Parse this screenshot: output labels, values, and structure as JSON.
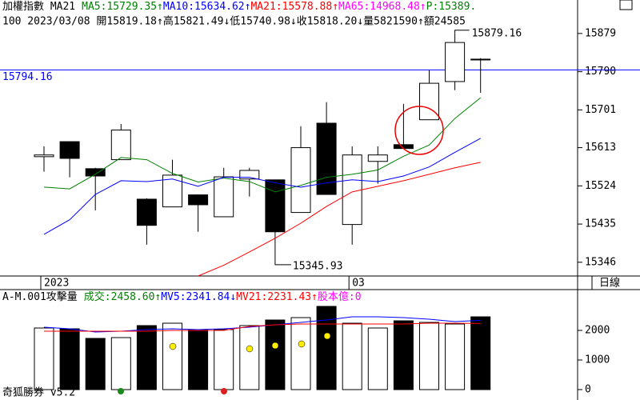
{
  "chart_data": [
    {
      "type": "candlestick",
      "header": [
        {
          "text": "加權指數 MA21",
          "color": "#000000"
        },
        {
          "text": "MA5:15729.35↑",
          "color": "#008000"
        },
        {
          "text": "MA10:15634.62↑",
          "color": "#0000ff"
        },
        {
          "text": "MA21:15578.88↑",
          "color": "#ff0000"
        },
        {
          "text": "MA65:14968.48↑",
          "color": "#ff00ff"
        },
        {
          "text": "P:15389.",
          "color": "#008000"
        }
      ],
      "subheader": "100 2023/03/08 開15819.18↑高15821.49↓低15740.98↓收15818.20↓量5821590↑額24585",
      "period": "日線",
      "categories": [
        "2023",
        null,
        null,
        null,
        null,
        null,
        null,
        null,
        null,
        null,
        null,
        null,
        "03",
        null,
        null,
        null,
        null,
        null
      ],
      "open": [
        15592,
        15627,
        15564,
        15585,
        15493,
        15475,
        15503,
        15452,
        15540,
        15538,
        15462,
        15670,
        15434,
        15581,
        15620,
        15678,
        15767,
        15819.18
      ],
      "high": [
        15616,
        15627,
        15566,
        15668,
        15495,
        15585,
        15504,
        15566,
        15566,
        15538,
        15663,
        15719,
        15616,
        15616,
        15715,
        15793,
        15879.16,
        15821.49
      ],
      "low": [
        15557,
        15544,
        15467,
        15585,
        15387,
        15475,
        15417,
        15452,
        15499,
        15345.93,
        15462,
        15504,
        15387,
        15529,
        15611,
        15678,
        15747,
        15740.98
      ],
      "close": [
        15596,
        15588,
        15547,
        15654,
        15432,
        15549,
        15480,
        15545,
        15560,
        15417,
        15613,
        15504,
        15596,
        15596,
        15611,
        15763,
        15858,
        15818.2
      ],
      "series": [
        {
          "color": "#008000",
          "values": [
            15521,
            15517,
            15551,
            15590,
            15585,
            15553,
            15533,
            15542,
            15534,
            15510,
            15525,
            15544,
            15551,
            15561,
            15593,
            15619,
            15681,
            15729.35
          ]
        },
        {
          "color": "#0000ff",
          "values": [
            15411,
            15445,
            15504,
            15536,
            15534,
            15540,
            15523,
            15544,
            15544,
            15531,
            15521,
            15531,
            15538,
            15534,
            15547,
            15568,
            15602,
            15634.62
          ]
        },
        {
          "color": "#ff0000",
          "values": [
            null,
            null,
            null,
            null,
            null,
            null,
            15314,
            15339,
            15370,
            15402,
            15437,
            15476,
            15510,
            15523,
            15536,
            15551,
            15566,
            15578.88
          ]
        }
      ],
      "reference_line": 15794.16,
      "reference_color": "#0000ff",
      "ylim": [
        15314,
        15957
      ],
      "yticks": [
        15879,
        15790,
        15701,
        15613,
        15524,
        15435,
        15346
      ]
    },
    {
      "type": "bar",
      "header": [
        {
          "text": "A-M.001攻擊量",
          "color": "#000000"
        },
        {
          "text": "成交:2458.60↑",
          "color": "#008000"
        },
        {
          "text": "MV5:2341.84↓",
          "color": "#0000ff"
        },
        {
          "text": "MV21:2231.43↑",
          "color": "#ff0000"
        },
        {
          "text": "股本億:0",
          "color": "#ff00ff"
        }
      ],
      "values": [
        2081,
        2054,
        1730,
        1757,
        2162,
        2243,
        2027,
        2027,
        2162,
        2351,
        2432,
        2811,
        2243,
        2081,
        2324,
        2270,
        2216,
        2458.6
      ],
      "series": [
        {
          "color": "#0000ff",
          "values": [
            2108,
            2054,
            1946,
            1973,
            2027,
            2054,
            2027,
            2054,
            2108,
            2189,
            2270,
            2351,
            2459,
            2459,
            2432,
            2378,
            2297,
            2341.84
          ]
        },
        {
          "color": "#ff0000",
          "values": [
            1973,
            1973,
            1973,
            1973,
            1973,
            2000,
            2000,
            2000,
            2135,
            2189,
            2216,
            2216,
            2216,
            2216,
            2216,
            2243,
            2243,
            2231.43
          ]
        }
      ],
      "ylim": [
        -351,
        3378
      ],
      "yticks": [
        0,
        1000,
        2000
      ]
    }
  ],
  "footer": "奇狐勝券 v5.2"
}
